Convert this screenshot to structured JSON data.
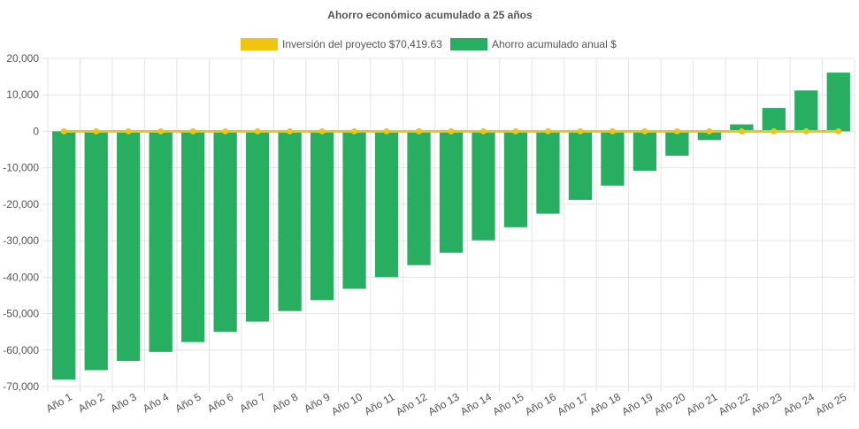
{
  "chart_data": {
    "type": "bar",
    "title": "Ahorro económico acumulado a 25 años",
    "categories": [
      "Año 1",
      "Año 2",
      "Año 3",
      "Año 4",
      "Año 5",
      "Año 6",
      "Año 7",
      "Año 8",
      "Año 9",
      "Año 10",
      "Año 11",
      "Año 12",
      "Año 13",
      "Año 14",
      "Año 15",
      "Año 16",
      "Año 17",
      "Año 18",
      "Año 19",
      "Año 20",
      "Año 21",
      "Año 22",
      "Año 23",
      "Año 24",
      "Año 25"
    ],
    "series": [
      {
        "name": "Inversión del proyecto $70,419.63",
        "type": "line",
        "color": "#f1c40f",
        "values": [
          0,
          0,
          0,
          0,
          0,
          0,
          0,
          0,
          0,
          0,
          0,
          0,
          0,
          0,
          0,
          0,
          0,
          0,
          0,
          0,
          0,
          0,
          0,
          0,
          0
        ]
      },
      {
        "name": "Ahorro acumulado anual $",
        "type": "bar",
        "color": "#27ae60",
        "values": [
          -68100,
          -65500,
          -63000,
          -60500,
          -57800,
          -55000,
          -52200,
          -49300,
          -46300,
          -43200,
          -40000,
          -36700,
          -33300,
          -29900,
          -26300,
          -22600,
          -18800,
          -14900,
          -10800,
          -6700,
          -2400,
          1900,
          6400,
          11200,
          16100
        ]
      }
    ],
    "ylim": [
      -70000,
      20000
    ],
    "yticks": [
      20000,
      10000,
      0,
      -10000,
      -20000,
      -30000,
      -40000,
      -50000,
      -60000,
      -70000
    ],
    "ytick_labels": [
      "20,000",
      "10,000",
      "0",
      "-10,000",
      "-20,000",
      "-30,000",
      "-40,000",
      "-50,000",
      "-60,000",
      "-70,000"
    ],
    "xlabel": "",
    "ylabel": "",
    "grid": true,
    "legend_position": "top-center"
  }
}
